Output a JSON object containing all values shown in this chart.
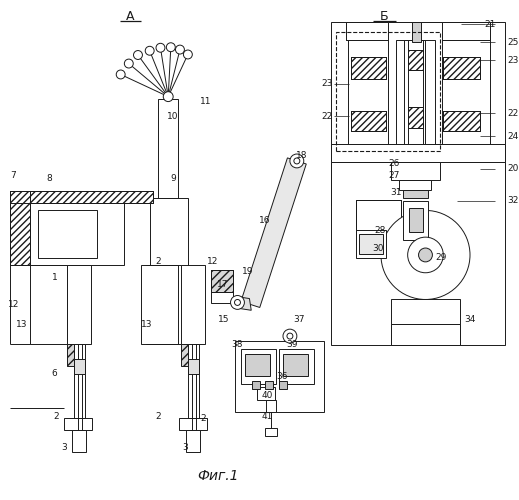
{
  "bg_color": "#ffffff",
  "line_color": "#1a1a1a",
  "fig_width": 5.19,
  "fig_height": 5.0,
  "dpi": 100,
  "label_A": "А",
  "label_B": "Б",
  "caption": "Фиг.1"
}
